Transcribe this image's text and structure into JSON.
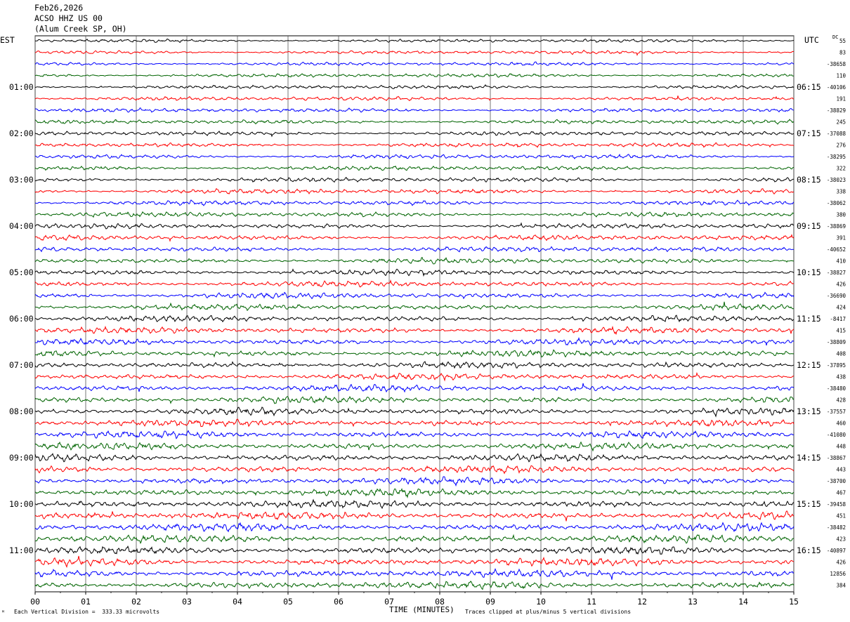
{
  "header": {
    "date": "Feb26,2026",
    "station": "ACSO HHZ US 00",
    "site": "(Alum Creek SP, OH)"
  },
  "labels": {
    "left_tz": "EST",
    "right_tz": "UTC",
    "dc": "DC",
    "x_title": "TIME (MINUTES)",
    "vertical_division": "Each Vertical Division =  333.33 microvolts",
    "clip_note": "Traces clipped at plus/minus 5 vertical divisions",
    "corner": "ᴹ"
  },
  "colors": {
    "trace_cycle": [
      "#000000",
      "#ff0000",
      "#0000ff",
      "#006400"
    ],
    "grid": "#000000"
  },
  "chart_data": {
    "type": "line",
    "description_type": "helicorder",
    "x_axis": {
      "label": "TIME (MINUTES)",
      "ticks": [
        "00",
        "01",
        "02",
        "03",
        "04",
        "05",
        "06",
        "07",
        "08",
        "09",
        "10",
        "11",
        "12",
        "13",
        "14",
        "15"
      ],
      "range": [
        0,
        15
      ]
    },
    "left_hour_labels": [
      {
        "row": 4,
        "text": "01:00"
      },
      {
        "row": 8,
        "text": "02:00"
      },
      {
        "row": 12,
        "text": "03:00"
      },
      {
        "row": 16,
        "text": "04:00"
      },
      {
        "row": 20,
        "text": "05:00"
      },
      {
        "row": 24,
        "text": "06:00"
      },
      {
        "row": 28,
        "text": "07:00"
      },
      {
        "row": 32,
        "text": "08:00"
      },
      {
        "row": 36,
        "text": "09:00"
      },
      {
        "row": 40,
        "text": "10:00"
      },
      {
        "row": 44,
        "text": "11:00"
      }
    ],
    "right_hour_labels": [
      {
        "row": 4,
        "text": "06:15"
      },
      {
        "row": 8,
        "text": "07:15"
      },
      {
        "row": 12,
        "text": "08:15"
      },
      {
        "row": 16,
        "text": "09:15"
      },
      {
        "row": 20,
        "text": "10:15"
      },
      {
        "row": 24,
        "text": "11:15"
      },
      {
        "row": 28,
        "text": "12:15"
      },
      {
        "row": 32,
        "text": "13:15"
      },
      {
        "row": 36,
        "text": "14:15"
      },
      {
        "row": 40,
        "text": "15:15"
      },
      {
        "row": 44,
        "text": "16:15"
      }
    ],
    "dc_offsets": [
      "55",
      "83",
      "-38658",
      "110",
      "-40106",
      "191",
      "-38829",
      "245",
      "-37088",
      "276",
      "-38295",
      "322",
      "-38023",
      "338",
      "-38062",
      "380",
      "-38869",
      "391",
      "-40652",
      "410",
      "-38827",
      "426",
      "-36690",
      "424",
      "-8417",
      "415",
      "-38809",
      "408",
      "-37895",
      "438",
      "-38480",
      "428",
      "-37557",
      "460",
      "-41080",
      "448",
      "-38867",
      "443",
      "-38700",
      "467",
      "-39458",
      "451",
      "-38482",
      "423",
      "-40897",
      "426",
      "12856",
      "384"
    ],
    "trace_count": 48,
    "minutes_per_trace": 15
  }
}
